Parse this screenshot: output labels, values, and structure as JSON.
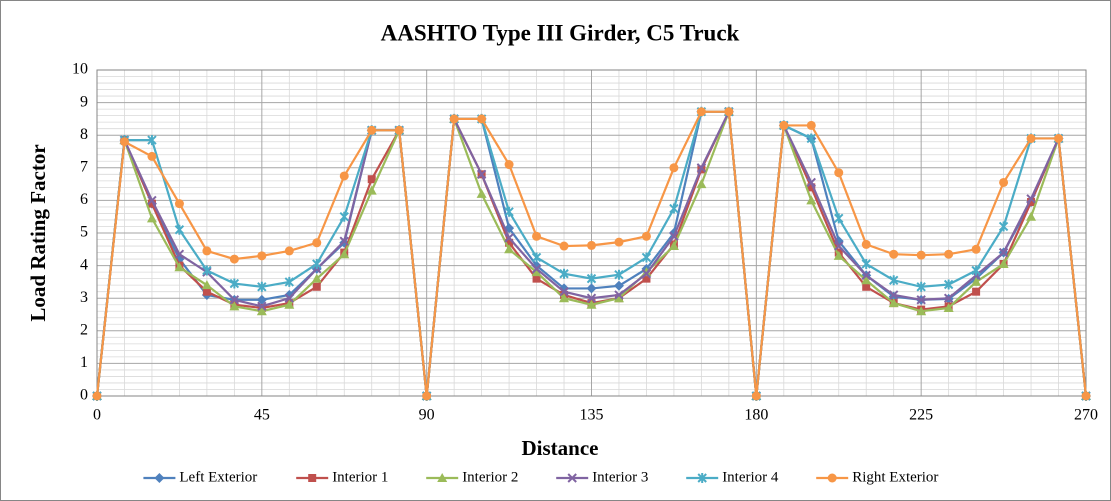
{
  "chart_data": {
    "type": "line",
    "title": "AASHTO Type III Girder, C5 Truck",
    "xlabel": "Distance",
    "ylabel": "Load Rating Factor",
    "x": [
      0,
      7.5,
      15,
      22.5,
      30,
      37.5,
      45,
      52.5,
      60,
      67.5,
      75,
      82.5,
      90,
      97.5,
      105,
      112.5,
      120,
      127.5,
      135,
      142.5,
      150,
      157.5,
      165,
      172.5,
      180,
      187.5,
      195,
      202.5,
      210,
      217.5,
      225,
      232.5,
      240,
      247.5,
      255,
      262.5,
      270
    ],
    "series": [
      {
        "name": "Left Exterior",
        "color": "#4f81bd",
        "marker": "diamond",
        "values": [
          0,
          7.85,
          5.9,
          4.2,
          3.1,
          2.95,
          2.95,
          3.1,
          3.9,
          4.7,
          8.15,
          8.15,
          0,
          8.5,
          8.5,
          5.15,
          4.0,
          3.3,
          3.3,
          3.38,
          3.9,
          5.0,
          8.72,
          8.72,
          0,
          8.3,
          7.9,
          4.75,
          3.7,
          3.05,
          2.95,
          2.98,
          3.6,
          4.4,
          5.95,
          7.9,
          0
        ]
      },
      {
        "name": "Interior 1",
        "color": "#c0504d",
        "marker": "square",
        "values": [
          0,
          7.85,
          5.9,
          4.0,
          3.2,
          2.8,
          2.7,
          2.85,
          3.35,
          4.4,
          6.65,
          8.15,
          0,
          8.5,
          6.8,
          4.7,
          3.6,
          3.1,
          2.85,
          3.0,
          3.6,
          4.65,
          6.95,
          8.72,
          0,
          8.3,
          6.4,
          4.4,
          3.35,
          2.85,
          2.65,
          2.75,
          3.2,
          4.05,
          5.95,
          7.9,
          0
        ]
      },
      {
        "name": "Interior 2",
        "color": "#9bbb59",
        "marker": "triangle",
        "values": [
          0,
          7.85,
          5.45,
          3.95,
          3.4,
          2.75,
          2.6,
          2.8,
          3.6,
          4.35,
          6.3,
          8.15,
          0,
          8.5,
          6.2,
          4.5,
          3.8,
          3.0,
          2.8,
          3.0,
          3.8,
          4.6,
          6.5,
          8.72,
          0,
          8.3,
          6.0,
          4.3,
          3.55,
          2.85,
          2.6,
          2.7,
          3.5,
          4.05,
          5.5,
          7.9,
          0
        ]
      },
      {
        "name": "Interior 3",
        "color": "#8064a2",
        "marker": "x",
        "values": [
          0,
          7.85,
          6.0,
          4.35,
          3.8,
          2.95,
          2.75,
          3.0,
          3.9,
          4.75,
          8.15,
          8.15,
          0,
          8.5,
          6.8,
          4.85,
          3.9,
          3.2,
          3.0,
          3.1,
          3.75,
          4.9,
          7.0,
          8.72,
          0,
          8.3,
          6.55,
          4.6,
          3.7,
          3.1,
          2.95,
          3.0,
          3.7,
          4.4,
          6.05,
          7.9,
          0
        ]
      },
      {
        "name": "Interior 4",
        "color": "#4bacc6",
        "marker": "star",
        "values": [
          0,
          7.85,
          7.85,
          5.1,
          3.85,
          3.45,
          3.35,
          3.5,
          4.05,
          5.5,
          8.15,
          8.15,
          0,
          8.5,
          8.5,
          5.65,
          4.25,
          3.75,
          3.6,
          3.72,
          4.25,
          5.75,
          8.72,
          8.72,
          0,
          8.3,
          7.9,
          5.45,
          4.05,
          3.55,
          3.35,
          3.42,
          3.85,
          5.2,
          7.9,
          7.9,
          0
        ]
      },
      {
        "name": "Right Exterior",
        "color": "#f79646",
        "marker": "circle",
        "values": [
          0,
          7.8,
          7.35,
          5.9,
          4.45,
          4.2,
          4.3,
          4.45,
          4.7,
          6.75,
          8.15,
          8.15,
          0,
          8.5,
          8.5,
          7.1,
          4.9,
          4.6,
          4.62,
          4.72,
          4.9,
          7.0,
          8.72,
          8.72,
          0,
          8.3,
          8.3,
          6.85,
          4.65,
          4.35,
          4.32,
          4.35,
          4.5,
          6.55,
          7.9,
          7.9,
          0
        ]
      }
    ],
    "xlim": [
      0,
      270
    ],
    "xticks": [
      0,
      45,
      90,
      135,
      180,
      225,
      270
    ],
    "ylim": [
      0,
      10
    ],
    "yticks": [
      0,
      1,
      2,
      3,
      4,
      5,
      6,
      7,
      8,
      9,
      10
    ],
    "grid": true,
    "minor_grid": {
      "x": 6,
      "y": 5
    },
    "legend": "bottom"
  }
}
